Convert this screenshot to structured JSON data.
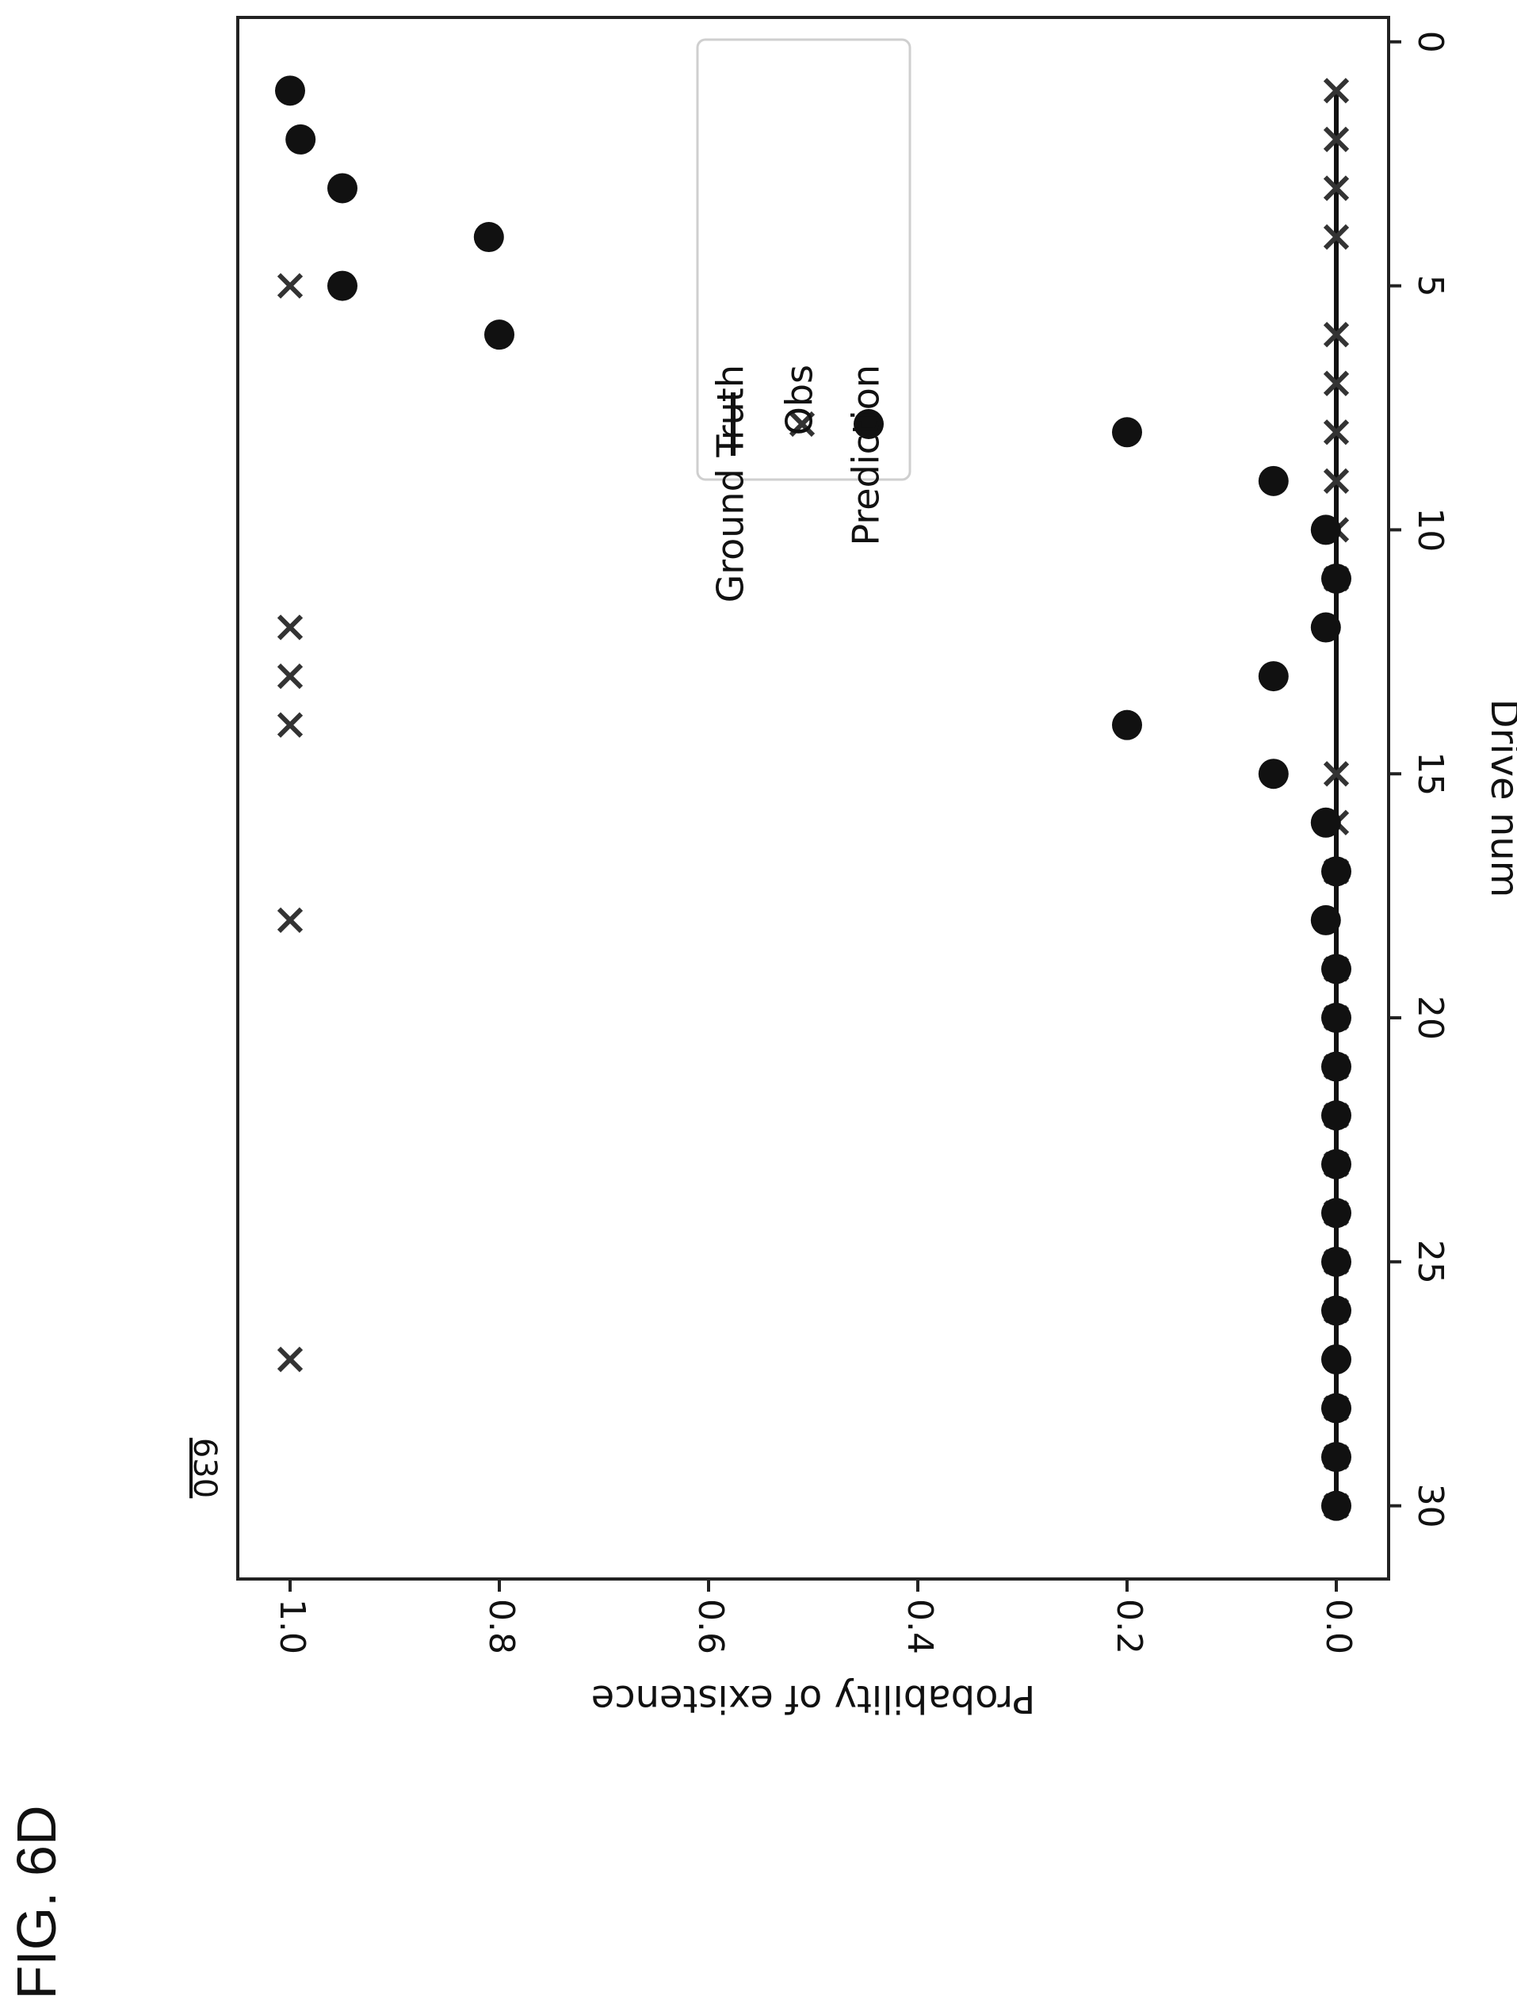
{
  "figure": {
    "label": "FIG. 6D",
    "reference": "630"
  },
  "chart_data": {
    "type": "scatter",
    "orientation": "rotated 90° clockwise (page in landscape)",
    "xlabel": "Drive num",
    "ylabel": "Probability of existence",
    "xlim": [
      -0.5,
      31.5
    ],
    "ylim": [
      -0.05,
      1.05
    ],
    "x_ticks": [
      0,
      5,
      10,
      15,
      20,
      25,
      30
    ],
    "x_tick_labels": [
      "0",
      "5",
      "10",
      "15",
      "20",
      "25",
      "30"
    ],
    "y_ticks": [
      0.0,
      0.2,
      0.4,
      0.6,
      0.8,
      1.0
    ],
    "y_tick_labels": [
      "0.0",
      "0.2",
      "0.4",
      "0.6",
      "0.8",
      "1.0"
    ],
    "grid": false,
    "legend_position": "upper right",
    "colors": {
      "ink": "#111111",
      "obs": "#333333",
      "frame": "#222222"
    },
    "series": [
      {
        "name": "Ground Truth",
        "kind": "line",
        "x": [
          1,
          2,
          3,
          4,
          5,
          6,
          7,
          8,
          9,
          10,
          11,
          12,
          13,
          14,
          15,
          16,
          17,
          18,
          19,
          20,
          21,
          22,
          23,
          24,
          25,
          26,
          27,
          28,
          29,
          30
        ],
        "y": [
          0,
          0,
          0,
          0,
          0,
          0,
          0,
          0,
          0,
          0,
          0,
          0,
          0,
          0,
          0,
          0,
          0,
          0,
          0,
          0,
          0,
          0,
          0,
          0,
          0,
          0,
          0,
          0,
          0,
          0
        ]
      },
      {
        "name": "Obs",
        "kind": "x-marker",
        "x": [
          1,
          2,
          3,
          4,
          5,
          6,
          7,
          8,
          9,
          10,
          11,
          12,
          13,
          14,
          15,
          16,
          17,
          18,
          19,
          20,
          21,
          22,
          23,
          24,
          25,
          26,
          27,
          28,
          29,
          30
        ],
        "y": [
          0,
          0,
          0,
          0,
          1,
          0,
          0,
          0,
          0,
          0,
          0,
          1,
          1,
          1,
          0,
          0,
          0,
          1,
          0,
          0,
          0,
          0,
          0,
          0,
          0,
          0,
          1,
          0,
          0,
          0
        ]
      },
      {
        "name": "Prediction",
        "kind": "dot",
        "x": [
          1,
          2,
          3,
          4,
          5,
          6,
          7,
          8,
          9,
          10,
          11,
          12,
          13,
          14,
          15,
          16,
          17,
          18,
          19,
          20,
          21,
          22,
          23,
          24,
          25,
          26,
          27,
          28,
          29,
          30
        ],
        "y": [
          1.0,
          0.99,
          0.95,
          0.81,
          0.95,
          0.8,
          0.5,
          0.2,
          0.06,
          0.01,
          0.0,
          0.01,
          0.06,
          0.2,
          0.06,
          0.01,
          0.0,
          0.01,
          0.0,
          0.0,
          0.0,
          0.0,
          0.0,
          0.0,
          0.0,
          0.0,
          0.0,
          0.0,
          0.0,
          0.0
        ]
      }
    ]
  }
}
